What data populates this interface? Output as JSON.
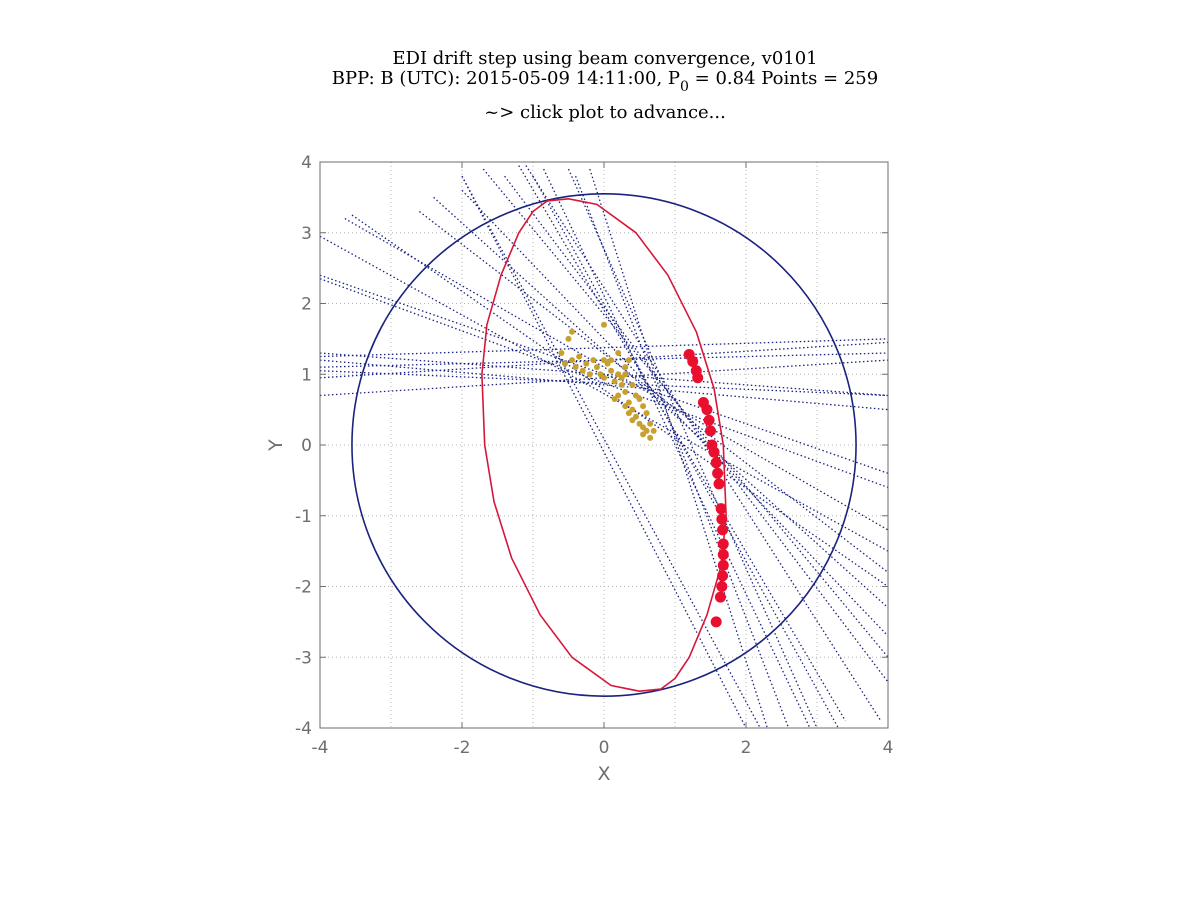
{
  "chart_data": {
    "type": "scatter",
    "title_parts": {
      "line1": "EDI drift step using beam convergence, v0101",
      "line2_before": "BPP: B (UTC): 2015-05-09 14:11:00, P",
      "line2_sub": "0",
      "line2_after": " = 0.84 Points = 259",
      "line3": "~> click plot to advance..."
    },
    "xlabel": "X",
    "ylabel": "Y",
    "xlim": [
      -4,
      4
    ],
    "ylim": [
      -4,
      4
    ],
    "xticks": [
      "-4",
      "-2",
      "0",
      "2",
      "4"
    ],
    "yticks": [
      "4",
      "3",
      "2",
      "1",
      "0",
      "-1",
      "-2",
      "-3",
      "-4"
    ],
    "grid": true,
    "colors": {
      "circle": "#1a237e",
      "ellipse": "#d6173a",
      "beams": "#1a237e",
      "drift_points": "#c8a030",
      "gun_points": "#e8102e",
      "axes": "#6e6e6e",
      "grid": "#b4b4b4"
    },
    "circle": {
      "center": [
        0,
        0
      ],
      "radius": 3.55
    },
    "ellipse": {
      "center": [
        0,
        0
      ],
      "points": [
        [
          -0.8,
          3.45
        ],
        [
          -1.0,
          3.3
        ],
        [
          -1.2,
          3.0
        ],
        [
          -1.45,
          2.4
        ],
        [
          -1.65,
          1.7
        ],
        [
          -1.72,
          1.0
        ],
        [
          -1.68,
          0.0
        ],
        [
          -1.55,
          -0.8
        ],
        [
          -1.3,
          -1.6
        ],
        [
          -0.9,
          -2.4
        ],
        [
          -0.45,
          -3.0
        ],
        [
          0.1,
          -3.4
        ],
        [
          0.5,
          -3.48
        ],
        [
          0.8,
          -3.45
        ],
        [
          1.0,
          -3.3
        ],
        [
          1.2,
          -3.0
        ],
        [
          1.45,
          -2.4
        ],
        [
          1.65,
          -1.7
        ],
        [
          1.72,
          -1.0
        ],
        [
          1.68,
          0.0
        ],
        [
          1.55,
          0.8
        ],
        [
          1.3,
          1.6
        ],
        [
          0.9,
          2.4
        ],
        [
          0.45,
          3.0
        ],
        [
          -0.1,
          3.4
        ],
        [
          -0.5,
          3.48
        ],
        [
          -0.8,
          3.45
        ]
      ]
    },
    "beams": [
      [
        [
          -4,
          1.25
        ],
        [
          4,
          1.5
        ]
      ],
      [
        [
          -4,
          1.1
        ],
        [
          4,
          1.3
        ]
      ],
      [
        [
          -4,
          0.95
        ],
        [
          4,
          1.45
        ]
      ],
      [
        [
          -4,
          0.7
        ],
        [
          4,
          1.2
        ]
      ],
      [
        [
          -4,
          1.3
        ],
        [
          4,
          0.7
        ]
      ],
      [
        [
          -4,
          1.2
        ],
        [
          4,
          0.5
        ]
      ],
      [
        [
          -4,
          1.05
        ],
        [
          4,
          0.7
        ]
      ],
      [
        [
          -4,
          2.4
        ],
        [
          4,
          -0.4
        ]
      ],
      [
        [
          -4,
          2.35
        ],
        [
          4,
          -0.6
        ]
      ],
      [
        [
          -4,
          2.95
        ],
        [
          4,
          -1.5
        ]
      ],
      [
        [
          -3.65,
          3.2
        ],
        [
          4,
          -1.2
        ]
      ],
      [
        [
          -3.55,
          3.25
        ],
        [
          4,
          -2.0
        ]
      ],
      [
        [
          -2.6,
          3.3
        ],
        [
          4,
          -1.8
        ]
      ],
      [
        [
          -2.4,
          3.5
        ],
        [
          4,
          -2.3
        ]
      ],
      [
        [
          -2.0,
          3.6
        ],
        [
          4,
          -2.7
        ]
      ],
      [
        [
          -1.7,
          3.9
        ],
        [
          4,
          -3.0
        ]
      ],
      [
        [
          -1.4,
          3.8
        ],
        [
          4,
          -3.35
        ]
      ],
      [
        [
          -0.5,
          3.9
        ],
        [
          3.0,
          -4.0
        ]
      ],
      [
        [
          -0.4,
          3.8
        ],
        [
          2.6,
          -4.0
        ]
      ],
      [
        [
          -0.2,
          3.9
        ],
        [
          2.3,
          -4.0
        ]
      ],
      [
        [
          -0.85,
          3.9
        ],
        [
          2.9,
          -4.0
        ]
      ],
      [
        [
          -1.0,
          3.8
        ],
        [
          3.3,
          -4.0
        ]
      ],
      [
        [
          -2.0,
          3.8
        ],
        [
          2.0,
          -4.0
        ]
      ],
      [
        [
          -2.0,
          3.8
        ],
        [
          2.2,
          -4.0
        ]
      ],
      [
        [
          -1.2,
          3.95
        ],
        [
          3.4,
          -3.9
        ]
      ],
      [
        [
          -1.1,
          3.95
        ],
        [
          3.9,
          -3.9
        ]
      ]
    ],
    "drift_points": [
      [
        -0.55,
        1.15
      ],
      [
        -0.45,
        1.2
      ],
      [
        -0.4,
        1.1
      ],
      [
        -0.35,
        1.25
      ],
      [
        -0.3,
        1.05
      ],
      [
        -0.25,
        1.15
      ],
      [
        -0.2,
        1.0
      ],
      [
        -0.15,
        1.2
      ],
      [
        -0.1,
        1.1
      ],
      [
        -0.05,
        1.0
      ],
      [
        0.0,
        0.95
      ],
      [
        0.05,
        1.15
      ],
      [
        0.1,
        1.05
      ],
      [
        0.15,
        0.9
      ],
      [
        0.2,
        1.0
      ],
      [
        0.25,
        0.85
      ],
      [
        0.3,
        0.75
      ],
      [
        0.35,
        0.6
      ],
      [
        0.4,
        0.5
      ],
      [
        0.45,
        0.4
      ],
      [
        0.5,
        0.3
      ],
      [
        0.55,
        0.25
      ],
      [
        0.6,
        0.2
      ],
      [
        0.65,
        0.3
      ],
      [
        0.7,
        0.2
      ],
      [
        0.3,
        0.55
      ],
      [
        0.35,
        0.45
      ],
      [
        0.2,
        0.7
      ],
      [
        0.15,
        0.65
      ],
      [
        0.25,
        0.95
      ],
      [
        0.3,
        1.1
      ],
      [
        0.35,
        1.2
      ],
      [
        0.1,
        1.2
      ],
      [
        0.0,
        1.2
      ],
      [
        -0.5,
        1.5
      ],
      [
        -0.45,
        1.6
      ],
      [
        0.0,
        1.7
      ],
      [
        -0.6,
        1.3
      ],
      [
        0.2,
        1.3
      ],
      [
        0.3,
        1.0
      ],
      [
        0.4,
        0.85
      ],
      [
        0.45,
        0.7
      ],
      [
        0.55,
        0.55
      ],
      [
        0.6,
        0.45
      ],
      [
        0.5,
        0.65
      ],
      [
        0.4,
        0.35
      ],
      [
        0.55,
        0.15
      ],
      [
        0.65,
        0.1
      ]
    ],
    "gun_points": [
      [
        1.2,
        1.28
      ],
      [
        1.25,
        1.18
      ],
      [
        1.3,
        1.05
      ],
      [
        1.32,
        0.95
      ],
      [
        1.4,
        0.6
      ],
      [
        1.45,
        0.5
      ],
      [
        1.48,
        0.35
      ],
      [
        1.5,
        0.2
      ],
      [
        1.52,
        0.0
      ],
      [
        1.55,
        -0.1
      ],
      [
        1.58,
        -0.25
      ],
      [
        1.6,
        -0.4
      ],
      [
        1.62,
        -0.55
      ],
      [
        1.65,
        -0.9
      ],
      [
        1.66,
        -1.05
      ],
      [
        1.67,
        -1.2
      ],
      [
        1.68,
        -1.4
      ],
      [
        1.68,
        -1.55
      ],
      [
        1.68,
        -1.7
      ],
      [
        1.67,
        -1.85
      ],
      [
        1.66,
        -2.0
      ],
      [
        1.64,
        -2.15
      ],
      [
        1.58,
        -2.5
      ]
    ]
  }
}
